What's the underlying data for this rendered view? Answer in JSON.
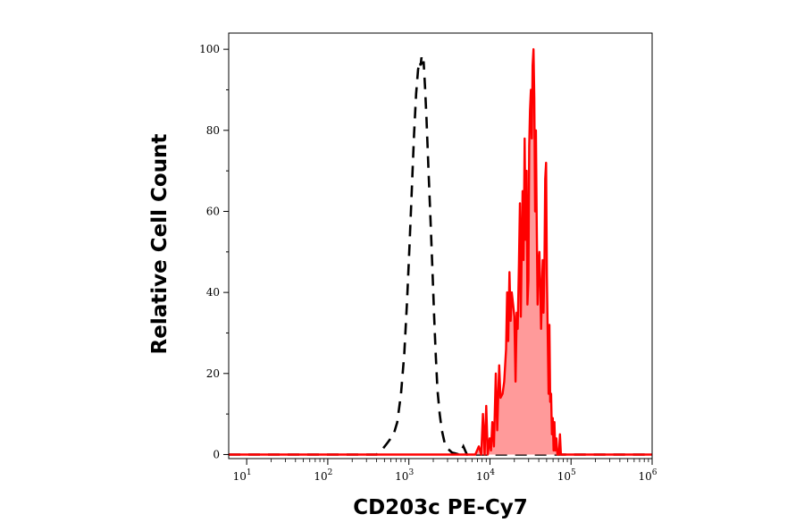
{
  "chart_data": {
    "type": "area",
    "title": "",
    "xlabel": "CD203c PE-Cy7",
    "ylabel": "Relative Cell Count",
    "x_scale": "log",
    "xlim": [
      6,
      1000000
    ],
    "ylim": [
      -1,
      104
    ],
    "grid": false,
    "x_ticks": [
      {
        "base": "10",
        "exp": "1",
        "value": 10
      },
      {
        "base": "10",
        "exp": "2",
        "value": 100
      },
      {
        "base": "10",
        "exp": "3",
        "value": 1000
      },
      {
        "base": "10",
        "exp": "4",
        "value": 10000
      },
      {
        "base": "10",
        "exp": "5",
        "value": 100000
      },
      {
        "base": "10",
        "exp": "6",
        "value": 1000000
      }
    ],
    "y_ticks": [
      "0",
      "20",
      "40",
      "60",
      "80",
      "100"
    ],
    "y_tick_values": [
      0,
      20,
      40,
      60,
      80,
      100
    ],
    "series": [
      {
        "style": "dashed",
        "color": "#000000",
        "points": [
          [
            6,
            0
          ],
          [
            400,
            0
          ],
          [
            460,
            1
          ],
          [
            550,
            3
          ],
          [
            650,
            5
          ],
          [
            720,
            8
          ],
          [
            800,
            15
          ],
          [
            880,
            25
          ],
          [
            950,
            38
          ],
          [
            1020,
            52
          ],
          [
            1090,
            66
          ],
          [
            1160,
            79
          ],
          [
            1230,
            89
          ],
          [
            1300,
            95
          ],
          [
            1360,
            97
          ],
          [
            1400,
            96
          ],
          [
            1430,
            98
          ],
          [
            1470,
            96
          ],
          [
            1520,
            97
          ],
          [
            1580,
            91
          ],
          [
            1650,
            83
          ],
          [
            1750,
            70
          ],
          [
            1850,
            58
          ],
          [
            1950,
            46
          ],
          [
            2050,
            34
          ],
          [
            2150,
            24
          ],
          [
            2250,
            16
          ],
          [
            2400,
            10
          ],
          [
            2550,
            6
          ],
          [
            2750,
            3
          ],
          [
            3000,
            1.5
          ],
          [
            3400,
            0.5
          ],
          [
            4200,
            0
          ],
          [
            4700,
            2
          ],
          [
            5200,
            0
          ],
          [
            1000000,
            0
          ]
        ]
      },
      {
        "style": "filled",
        "color": "#ff0000",
        "fill": "#ff9a9a",
        "points": [
          [
            6,
            0
          ],
          [
            6600,
            0
          ],
          [
            7300,
            2
          ],
          [
            7800,
            0
          ],
          [
            8200,
            10
          ],
          [
            8600,
            0
          ],
          [
            9000,
            12
          ],
          [
            9400,
            0
          ],
          [
            9900,
            4
          ],
          [
            10300,
            1
          ],
          [
            10700,
            8
          ],
          [
            11200,
            2
          ],
          [
            11800,
            20
          ],
          [
            12300,
            6
          ],
          [
            13000,
            22
          ],
          [
            13500,
            14
          ],
          [
            14300,
            15
          ],
          [
            15000,
            18
          ],
          [
            15800,
            26
          ],
          [
            16300,
            40
          ],
          [
            16800,
            28
          ],
          [
            17400,
            45
          ],
          [
            18000,
            33
          ],
          [
            18600,
            40
          ],
          [
            19300,
            37
          ],
          [
            20000,
            34
          ],
          [
            20700,
            18
          ],
          [
            21400,
            35
          ],
          [
            22000,
            31
          ],
          [
            22800,
            47
          ],
          [
            23400,
            62
          ],
          [
            24000,
            34
          ],
          [
            24700,
            52
          ],
          [
            25300,
            65
          ],
          [
            26000,
            48
          ],
          [
            26800,
            78
          ],
          [
            27500,
            53
          ],
          [
            28300,
            70
          ],
          [
            29000,
            37
          ],
          [
            29800,
            43
          ],
          [
            30500,
            76
          ],
          [
            31200,
            85
          ],
          [
            32000,
            90
          ],
          [
            32800,
            78
          ],
          [
            33600,
            96
          ],
          [
            34400,
            100
          ],
          [
            35200,
            88
          ],
          [
            36000,
            60
          ],
          [
            36900,
            80
          ],
          [
            37800,
            55
          ],
          [
            38700,
            37
          ],
          [
            39700,
            46
          ],
          [
            40700,
            50
          ],
          [
            41700,
            42
          ],
          [
            42700,
            31
          ],
          [
            43700,
            40
          ],
          [
            44700,
            48
          ],
          [
            45800,
            35
          ],
          [
            46900,
            46
          ],
          [
            48000,
            68
          ],
          [
            49200,
            72
          ],
          [
            50400,
            44
          ],
          [
            51600,
            30
          ],
          [
            52800,
            15
          ],
          [
            54100,
            32
          ],
          [
            55400,
            13
          ],
          [
            56700,
            15
          ],
          [
            58100,
            5
          ],
          [
            59500,
            9
          ],
          [
            60900,
            1
          ],
          [
            62400,
            8
          ],
          [
            64000,
            1
          ],
          [
            66000,
            4
          ],
          [
            68000,
            0
          ],
          [
            71000,
            0
          ],
          [
            73000,
            5
          ],
          [
            75000,
            0
          ],
          [
            1000000,
            0
          ]
        ]
      }
    ]
  }
}
